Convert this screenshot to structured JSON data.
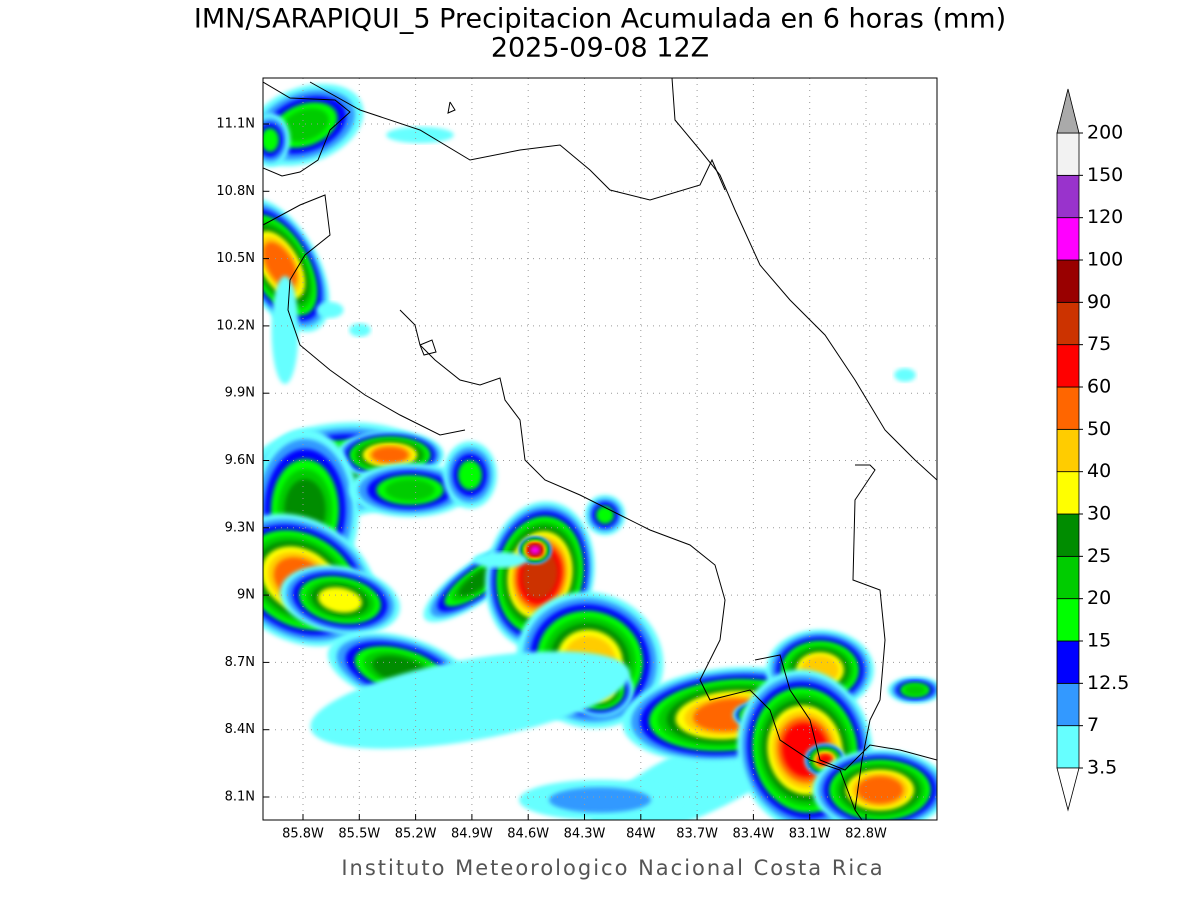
{
  "map": {
    "title": "IMN/SARAPIQUI_5 Precipitacion Acumulada en 6 horas (mm)",
    "subtitle": "2025-09-08 12Z",
    "lon_ticks": [
      "85.8W",
      "85.5W",
      "85.2W",
      "84.9W",
      "84.6W",
      "84.3W",
      "84W",
      "83.7W",
      "83.4W",
      "83.1W",
      "82.8W"
    ],
    "lat_ticks": [
      "11.1N",
      "10.8N",
      "10.5N",
      "10.2N",
      "9.9N",
      "9.6N",
      "9.3N",
      "9N",
      "8.7N",
      "8.4N",
      "8.1N"
    ],
    "colorbar": {
      "levels": [
        3.5,
        7,
        12.5,
        15,
        20,
        25,
        30,
        40,
        50,
        60,
        75,
        90,
        100,
        120,
        150,
        200
      ],
      "colors": [
        "#66ffff",
        "#3399ff",
        "#0000ff",
        "#00ff00",
        "#00cc00",
        "#008c00",
        "#ffff00",
        "#ffcc00",
        "#ff6600",
        "#ff0000",
        "#cc3300",
        "#990000",
        "#ff00ff",
        "#9933cc",
        "#f2f2f2"
      ],
      "under_color": "#ffffff",
      "over_color": "#aaaaaa"
    },
    "footer": "Instituto Meteorologico Nacional Costa Rica"
  }
}
